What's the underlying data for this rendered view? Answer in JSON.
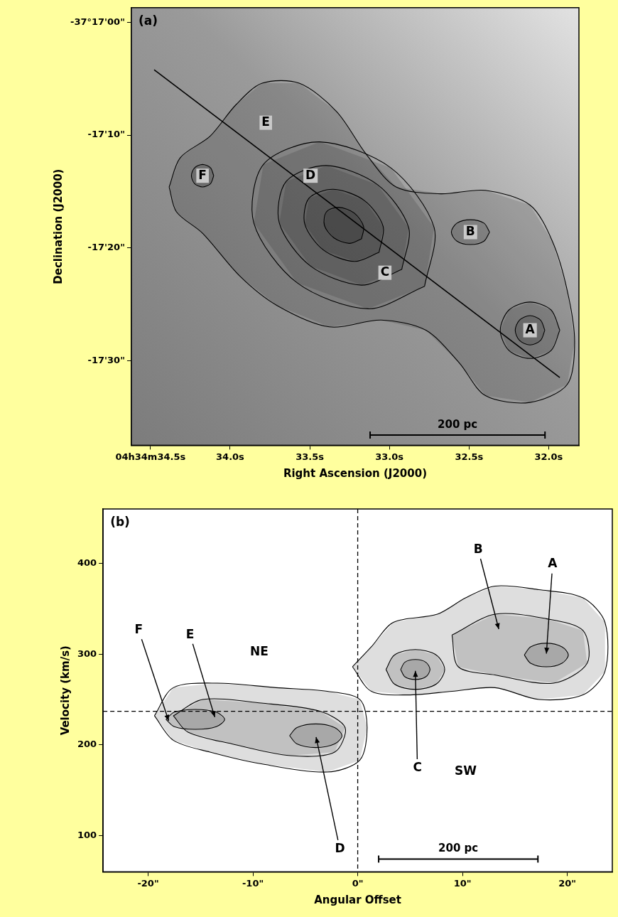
{
  "chart_data": [
    {
      "type": "contour",
      "panel": "(a)",
      "x_label": "Right Ascension (J2000)",
      "y_label": "Declination (J2000)",
      "xlim": [
        34.62,
        31.81
      ],
      "xticks": [
        {
          "value": 34.5,
          "label": "04h34m34.5s"
        },
        {
          "value": 34.0,
          "label": "34.0s"
        },
        {
          "value": 33.5,
          "label": "33.5s"
        },
        {
          "value": 33.0,
          "label": "33.0s"
        },
        {
          "value": 32.5,
          "label": "32.5s"
        },
        {
          "value": 32.0,
          "label": "32.0s"
        }
      ],
      "ylim": [
        -134257.5,
        -134218.7
      ],
      "yticks": [
        {
          "value": -134250,
          "label": "-17'30\""
        },
        {
          "value": -134240,
          "label": "-17'20\""
        },
        {
          "value": -134230,
          "label": "-17'10\""
        },
        {
          "value": -134220,
          "label": "-37°17'00\""
        }
      ],
      "grid": false,
      "contours": [
        [
          [
            34.383,
            -134234.6
          ],
          [
            34.313,
            -134232.0
          ],
          [
            34.126,
            -134230.1
          ],
          [
            33.963,
            -134227.3
          ],
          [
            33.799,
            -134225.4
          ],
          [
            33.566,
            -134225.4
          ],
          [
            33.332,
            -134227.9
          ],
          [
            33.145,
            -134231.7
          ],
          [
            32.958,
            -134234.6
          ],
          [
            32.678,
            -134235.2
          ],
          [
            32.397,
            -134234.9
          ],
          [
            32.117,
            -134236.2
          ],
          [
            31.977,
            -134239.4
          ],
          [
            31.883,
            -134243.8
          ],
          [
            31.837,
            -134248.3
          ],
          [
            31.883,
            -134252.1
          ],
          [
            32.117,
            -134253.7
          ],
          [
            32.397,
            -134253.1
          ],
          [
            32.561,
            -134250.2
          ],
          [
            32.771,
            -134247.3
          ],
          [
            33.051,
            -134246.4
          ],
          [
            33.378,
            -134247.0
          ],
          [
            33.706,
            -134245.1
          ],
          [
            33.939,
            -134242.5
          ],
          [
            34.173,
            -134238.7
          ],
          [
            34.337,
            -134236.8
          ]
        ],
        [
          [
            32.779,
            -134243.4
          ],
          [
            33.133,
            -134245.4
          ],
          [
            33.579,
            -134243.1
          ],
          [
            33.851,
            -134237.8
          ],
          [
            33.791,
            -134232.6
          ],
          [
            33.437,
            -134230.6
          ],
          [
            32.991,
            -134232.9
          ],
          [
            32.719,
            -134238.2
          ]
        ],
        [
          [
            32.922,
            -134241.9
          ],
          [
            33.176,
            -134243.3
          ],
          [
            33.496,
            -134241.6
          ],
          [
            33.691,
            -134237.8
          ],
          [
            33.648,
            -134234.1
          ],
          [
            33.394,
            -134232.7
          ],
          [
            33.074,
            -134234.4
          ],
          [
            32.879,
            -134238.2
          ]
        ],
        [
          [
            33.065,
            -134240.4
          ],
          [
            33.219,
            -134241.2
          ],
          [
            33.413,
            -134240.2
          ],
          [
            33.531,
            -134237.9
          ],
          [
            33.505,
            -134235.6
          ],
          [
            33.351,
            -134234.8
          ],
          [
            33.157,
            -134235.8
          ],
          [
            33.039,
            -134238.1
          ]
        ],
        [
          [
            33.175,
            -134239.2
          ],
          [
            33.252,
            -134239.6
          ],
          [
            33.349,
            -134239.1
          ],
          [
            33.408,
            -134238.0
          ],
          [
            33.395,
            -134236.8
          ],
          [
            33.318,
            -134236.4
          ],
          [
            33.221,
            -134236.9
          ],
          [
            33.162,
            -134238.1
          ]
        ],
        [
          [
            31.93,
            -134247.3
          ],
          [
            31.985,
            -134245.5
          ],
          [
            32.117,
            -134244.8
          ],
          [
            32.249,
            -134245.5
          ],
          [
            32.304,
            -134247.3
          ],
          [
            32.249,
            -134249.1
          ],
          [
            32.117,
            -134249.8
          ],
          [
            31.985,
            -134249.1
          ]
        ],
        [
          [
            32.024,
            -134247.3
          ],
          [
            32.051,
            -134246.4
          ],
          [
            32.117,
            -134246.0
          ],
          [
            32.183,
            -134246.4
          ],
          [
            32.21,
            -134247.3
          ],
          [
            32.183,
            -134248.2
          ],
          [
            32.117,
            -134248.6
          ],
          [
            32.051,
            -134248.2
          ]
        ],
        [
          [
            32.371,
            -134238.6
          ],
          [
            32.406,
            -134237.8
          ],
          [
            32.491,
            -134237.5
          ],
          [
            32.576,
            -134237.8
          ],
          [
            32.611,
            -134238.6
          ],
          [
            32.576,
            -134239.4
          ],
          [
            32.491,
            -134239.7
          ],
          [
            32.406,
            -134239.4
          ]
        ],
        [
          [
            34.103,
            -134233.6
          ],
          [
            34.123,
            -134232.9
          ],
          [
            34.173,
            -134232.6
          ],
          [
            34.223,
            -134232.9
          ],
          [
            34.243,
            -134233.6
          ],
          [
            34.223,
            -134234.3
          ],
          [
            34.173,
            -134234.6
          ],
          [
            34.123,
            -134234.3
          ]
        ]
      ],
      "peaks": [
        {
          "label": "A",
          "x": 32.117,
          "y": -134247.3
        },
        {
          "label": "B",
          "x": 32.491,
          "y": -134238.6
        },
        {
          "label": "C",
          "x": 33.028,
          "y": -134242.2
        },
        {
          "label": "D",
          "x": 33.495,
          "y": -134233.6
        },
        {
          "label": "E",
          "x": 33.776,
          "y": -134228.9
        },
        {
          "label": "F",
          "x": 34.173,
          "y": -134233.6
        }
      ],
      "cut_line": [
        [
          34.477,
          -134224.2
        ],
        [
          31.93,
          -134251.5
        ]
      ],
      "scale_bar": {
        "label": "200 pc",
        "x": [
          33.121,
          32.023
        ],
        "y": -134256.6
      }
    },
    {
      "type": "contour",
      "panel": "(b)",
      "x_label": "Angular Offset",
      "y_label": "Velocity (km/s)",
      "xlim": [
        -24.3,
        24.3
      ],
      "xticks": [
        {
          "value": -20,
          "label": "-20\""
        },
        {
          "value": -10,
          "label": "-10\""
        },
        {
          "value": 0,
          "label": "0\""
        },
        {
          "value": 10,
          "label": "10\""
        },
        {
          "value": 20,
          "label": "20\""
        }
      ],
      "ylim": [
        60,
        460
      ],
      "yticks": [
        100,
        200,
        300,
        400
      ],
      "grid": false,
      "contours": [
        [
          [
            -0.5,
            286
          ],
          [
            1.3,
            308
          ],
          [
            3.4,
            335
          ],
          [
            7.6,
            344
          ],
          [
            10.3,
            362
          ],
          [
            13.1,
            375
          ],
          [
            17.3,
            371
          ],
          [
            21.5,
            362
          ],
          [
            23.6,
            335
          ],
          [
            23.6,
            281
          ],
          [
            21.5,
            255
          ],
          [
            17.3,
            250
          ],
          [
            13.1,
            263
          ],
          [
            9.0,
            259
          ],
          [
            4.8,
            255
          ],
          [
            1.3,
            259
          ]
        ],
        [
          [
            9.0,
            321
          ],
          [
            13.1,
            344
          ],
          [
            18.0,
            339
          ],
          [
            21.5,
            326
          ],
          [
            21.9,
            290
          ],
          [
            18.7,
            268
          ],
          [
            13.1,
            277
          ],
          [
            9.6,
            286
          ]
        ],
        [
          [
            15.9,
            299
          ],
          [
            16.5,
            308
          ],
          [
            18.0,
            312
          ],
          [
            19.5,
            308
          ],
          [
            20.1,
            299
          ],
          [
            19.5,
            290
          ],
          [
            18.0,
            286
          ],
          [
            16.5,
            290
          ]
        ],
        [
          [
            2.7,
            283
          ],
          [
            3.5,
            299
          ],
          [
            5.5,
            305
          ],
          [
            7.5,
            299
          ],
          [
            8.3,
            283
          ],
          [
            7.5,
            267
          ],
          [
            5.5,
            261
          ],
          [
            3.5,
            267
          ]
        ],
        [
          [
            4.1,
            283
          ],
          [
            4.5,
            291
          ],
          [
            5.5,
            294
          ],
          [
            6.5,
            291
          ],
          [
            6.9,
            283
          ],
          [
            6.5,
            275
          ],
          [
            5.5,
            272
          ],
          [
            4.5,
            275
          ]
        ],
        [
          [
            -19.4,
            232
          ],
          [
            -17.6,
            263
          ],
          [
            -13.4,
            268
          ],
          [
            -7.8,
            263
          ],
          [
            -2.9,
            259
          ],
          [
            0.2,
            250
          ],
          [
            0.9,
            219
          ],
          [
            0.2,
            183
          ],
          [
            -2.9,
            170
          ],
          [
            -9.2,
            179
          ],
          [
            -14.1,
            192
          ],
          [
            -17.6,
            205
          ]
        ],
        [
          [
            -17.6,
            232
          ],
          [
            -14.8,
            250
          ],
          [
            -9.2,
            246
          ],
          [
            -3.6,
            237
          ],
          [
            -1.2,
            219
          ],
          [
            -2.2,
            192
          ],
          [
            -6.4,
            188
          ],
          [
            -12.0,
            201
          ],
          [
            -16.2,
            214
          ]
        ],
        [
          [
            -6.5,
            210
          ],
          [
            -5.8,
            219
          ],
          [
            -4.0,
            223
          ],
          [
            -2.2,
            219
          ],
          [
            -1.5,
            210
          ],
          [
            -2.2,
            201
          ],
          [
            -4.0,
            197
          ],
          [
            -5.8,
            201
          ]
        ],
        [
          [
            -18.3,
            228
          ],
          [
            -17.5,
            236
          ],
          [
            -15.5,
            239
          ],
          [
            -13.5,
            236
          ],
          [
            -12.7,
            228
          ],
          [
            -13.5,
            220
          ],
          [
            -15.5,
            217
          ],
          [
            -17.5,
            220
          ]
        ]
      ],
      "dashed_lines": {
        "x": 0,
        "y": 237
      },
      "annotations": [
        {
          "text": "A",
          "x": 18.6,
          "y": 399,
          "points_to": [
            18.0,
            299
          ]
        },
        {
          "text": "B",
          "x": 11.5,
          "y": 415,
          "points_to": [
            13.5,
            326
          ]
        },
        {
          "text": "C",
          "x": 5.7,
          "y": 174,
          "points_to": [
            5.5,
            283
          ]
        },
        {
          "text": "D",
          "x": -1.7,
          "y": 85,
          "points_to": [
            -4.0,
            210
          ]
        },
        {
          "text": "E",
          "x": -16.0,
          "y": 321,
          "points_to": [
            -13.6,
            229
          ]
        },
        {
          "text": "F",
          "x": -20.9,
          "y": 326,
          "points_to": [
            -18.0,
            225
          ]
        },
        {
          "text": "NE",
          "x": -9.4,
          "y": 302
        },
        {
          "text": "SW",
          "x": 10.3,
          "y": 170
        }
      ],
      "scale_bar": {
        "label": "200 pc",
        "x": [
          2.0,
          17.2
        ],
        "y": 74
      }
    }
  ]
}
